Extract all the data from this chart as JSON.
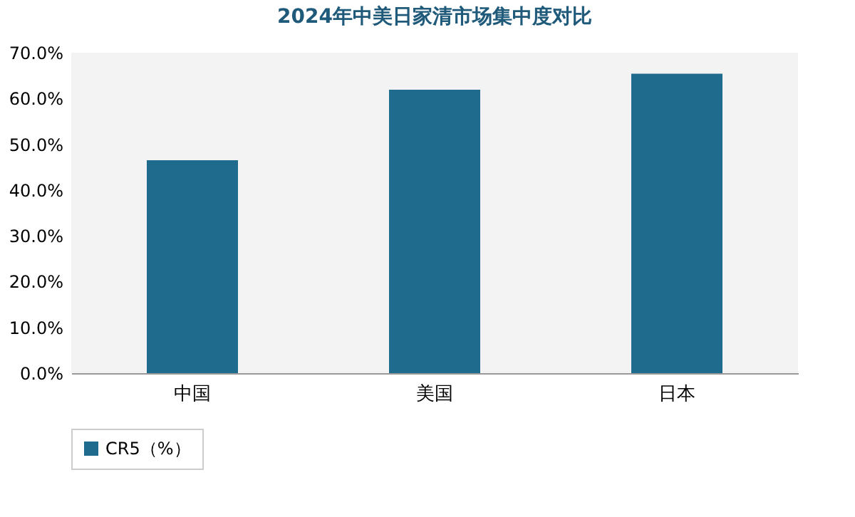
{
  "chart_data": {
    "type": "bar",
    "title": "2024年中美日家清市场集中度对比",
    "categories": [
      "中国",
      "美国",
      "日本"
    ],
    "series": [
      {
        "name": "CR5（%）",
        "color": "#1f6b8e",
        "values": [
          46.5,
          61.9,
          65.4
        ]
      }
    ],
    "ylim": [
      0,
      70
    ],
    "yticks": [
      {
        "value": 0,
        "label": "0.0%"
      },
      {
        "value": 10,
        "label": "10.0%"
      },
      {
        "value": 20,
        "label": "20.0%"
      },
      {
        "value": 30,
        "label": "30.0%"
      },
      {
        "value": 40,
        "label": "40.0%"
      },
      {
        "value": 50,
        "label": "50.0%"
      },
      {
        "value": 60,
        "label": "60.0%"
      },
      {
        "value": 70,
        "label": "70.0%"
      }
    ],
    "grid": false,
    "legend": "bottom"
  }
}
